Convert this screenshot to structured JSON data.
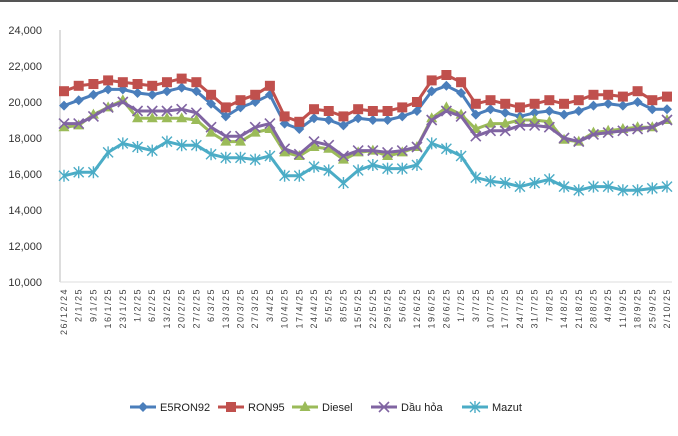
{
  "chart_data": {
    "type": "line",
    "title": "",
    "xlabel": "",
    "ylabel": "",
    "ylim": [
      10000,
      24000
    ],
    "yticks": [
      "10,000",
      "12,000",
      "14,000",
      "16,000",
      "18,000",
      "20,000",
      "22,000",
      "24,000"
    ],
    "ytick_values": [
      10000,
      12000,
      14000,
      16000,
      18000,
      20000,
      22000,
      24000
    ],
    "grid": false,
    "legend_position": "bottom",
    "x": [
      "26/12/24",
      "2/1/25",
      "9/1/25",
      "16/1/25",
      "23/1/25",
      "1/2/25",
      "6/2/25",
      "13/2/25",
      "20/2/25",
      "27/2/25",
      "6/3/25",
      "13/3/25",
      "20/3/25",
      "27/3/25",
      "3/4/25",
      "10/4/25",
      "17/4/25",
      "24/4/25",
      "5/5/25",
      "8/5/25",
      "15/5/25",
      "22/5/25",
      "29/5/25",
      "5/6/25",
      "12/6/25",
      "19/6/25",
      "26/6/25",
      "1/7/25",
      "3/7/25",
      "10/7/25",
      "17/7/25",
      "24/7/25",
      "31/7/25",
      "7/8/25",
      "14/8/25",
      "21/8/25",
      "28/8/25",
      "4/9/25",
      "11/9/25",
      "18/9/25",
      "25/9/25",
      "2/10/25"
    ],
    "series": [
      {
        "name": "E5RON92",
        "color": "#4a7ebb",
        "marker": "diamond",
        "values": [
          19800,
          20100,
          20400,
          20700,
          20700,
          20500,
          20400,
          20600,
          20800,
          20600,
          19900,
          19200,
          19700,
          20000,
          20400,
          18800,
          18500,
          19100,
          19000,
          18700,
          19100,
          19000,
          19000,
          19200,
          19500,
          20600,
          20900,
          20500,
          19300,
          19600,
          19400,
          19200,
          19400,
          19500,
          19300,
          19500,
          19800,
          19900,
          19800,
          20000,
          19600,
          19600
        ]
      },
      {
        "name": "RON95",
        "color": "#c0504d",
        "marker": "square",
        "values": [
          20600,
          20900,
          21000,
          21200,
          21100,
          21000,
          20900,
          21100,
          21300,
          21100,
          20400,
          19700,
          20100,
          20400,
          20900,
          19200,
          18900,
          19600,
          19500,
          19200,
          19600,
          19500,
          19500,
          19700,
          20000,
          21200,
          21500,
          21100,
          19900,
          20100,
          19900,
          19700,
          19900,
          20100,
          19900,
          20100,
          20400,
          20400,
          20300,
          20600,
          20100,
          20300
        ]
      },
      {
        "name": "Diesel",
        "color": "#9bbb59",
        "marker": "triangle",
        "values": [
          18600,
          18700,
          19300,
          19700,
          20100,
          19100,
          19100,
          19100,
          19100,
          19000,
          18300,
          17800,
          17800,
          18300,
          18500,
          17200,
          17000,
          17500,
          17400,
          16800,
          17200,
          17300,
          17000,
          17200,
          17500,
          19100,
          19700,
          19300,
          18500,
          18800,
          18800,
          19000,
          19000,
          18900,
          17900,
          17800,
          18300,
          18400,
          18500,
          18600,
          18600,
          19000
        ]
      },
      {
        "name": "Dầu hỏa",
        "color": "#8064a2",
        "marker": "x",
        "values": [
          18800,
          18800,
          19200,
          19700,
          20000,
          19500,
          19500,
          19500,
          19600,
          19400,
          18600,
          18100,
          18100,
          18600,
          18800,
          17400,
          17100,
          17800,
          17600,
          17000,
          17300,
          17300,
          17200,
          17300,
          17500,
          19000,
          19500,
          19200,
          18100,
          18400,
          18400,
          18700,
          18700,
          18600,
          18000,
          17800,
          18200,
          18300,
          18400,
          18500,
          18600,
          19000
        ]
      },
      {
        "name": "Mazut",
        "color": "#4bacc6",
        "marker": "star",
        "values": [
          15900,
          16100,
          16100,
          17200,
          17700,
          17500,
          17300,
          17800,
          17600,
          17600,
          17100,
          16900,
          16900,
          16800,
          17000,
          15900,
          15900,
          16400,
          16200,
          15500,
          16200,
          16500,
          16300,
          16300,
          16500,
          17700,
          17400,
          17000,
          15800,
          15600,
          15500,
          15300,
          15500,
          15700,
          15300,
          15100,
          15300,
          15300,
          15100,
          15100,
          15200,
          15300
        ]
      }
    ]
  }
}
